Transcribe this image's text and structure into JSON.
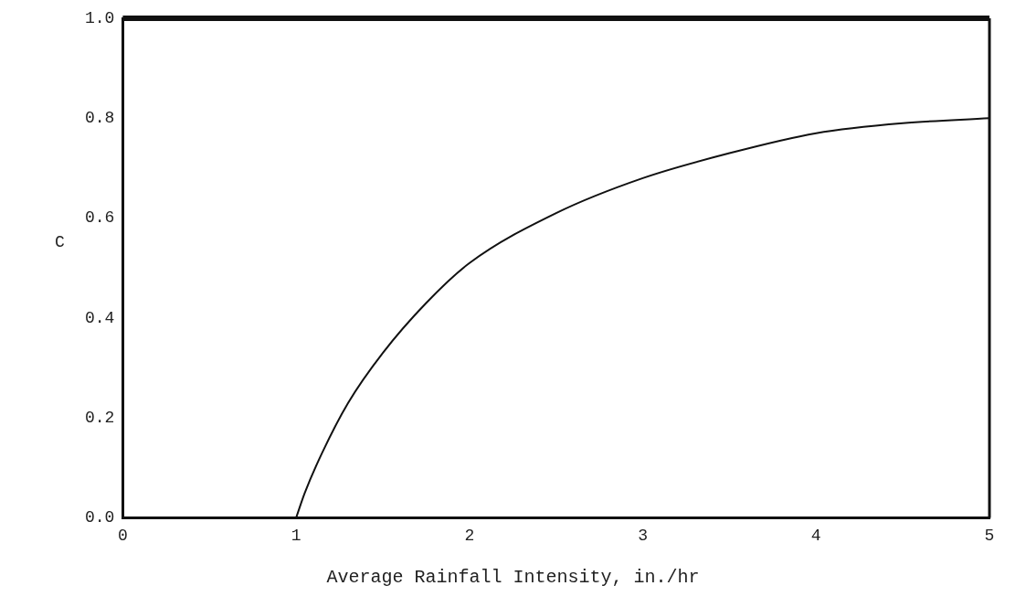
{
  "chart_data": {
    "type": "line",
    "xlabel": "Average Rainfall Intensity, in./hr",
    "ylabel": "C",
    "series": [
      {
        "color": "#111111",
        "x": [
          1,
          1.05,
          1.15,
          1.3,
          1.5,
          1.75,
          2,
          2.5,
          3,
          3.5,
          4,
          4.5,
          5
        ],
        "values": [
          0,
          0.05,
          0.13,
          0.23,
          0.33,
          0.43,
          0.51,
          0.61,
          0.68,
          0.73,
          0.77,
          0.79,
          0.8
        ]
      }
    ],
    "xlim": [
      0,
      5
    ],
    "xticks": [
      0,
      1,
      2,
      3,
      4,
      5
    ],
    "ylim": [
      0,
      1
    ],
    "yticks": [
      {
        "value": 0,
        "label": "0.0"
      },
      {
        "value": 0.2,
        "label": "0.2"
      },
      {
        "value": 0.4,
        "label": "0.4"
      },
      {
        "value": 0.6,
        "label": "0.6"
      },
      {
        "value": 0.8,
        "label": "0.8"
      },
      {
        "value": 1,
        "label": "1.0"
      }
    ],
    "grid": false,
    "legend": false,
    "marker": "none",
    "line_style": "solid"
  }
}
